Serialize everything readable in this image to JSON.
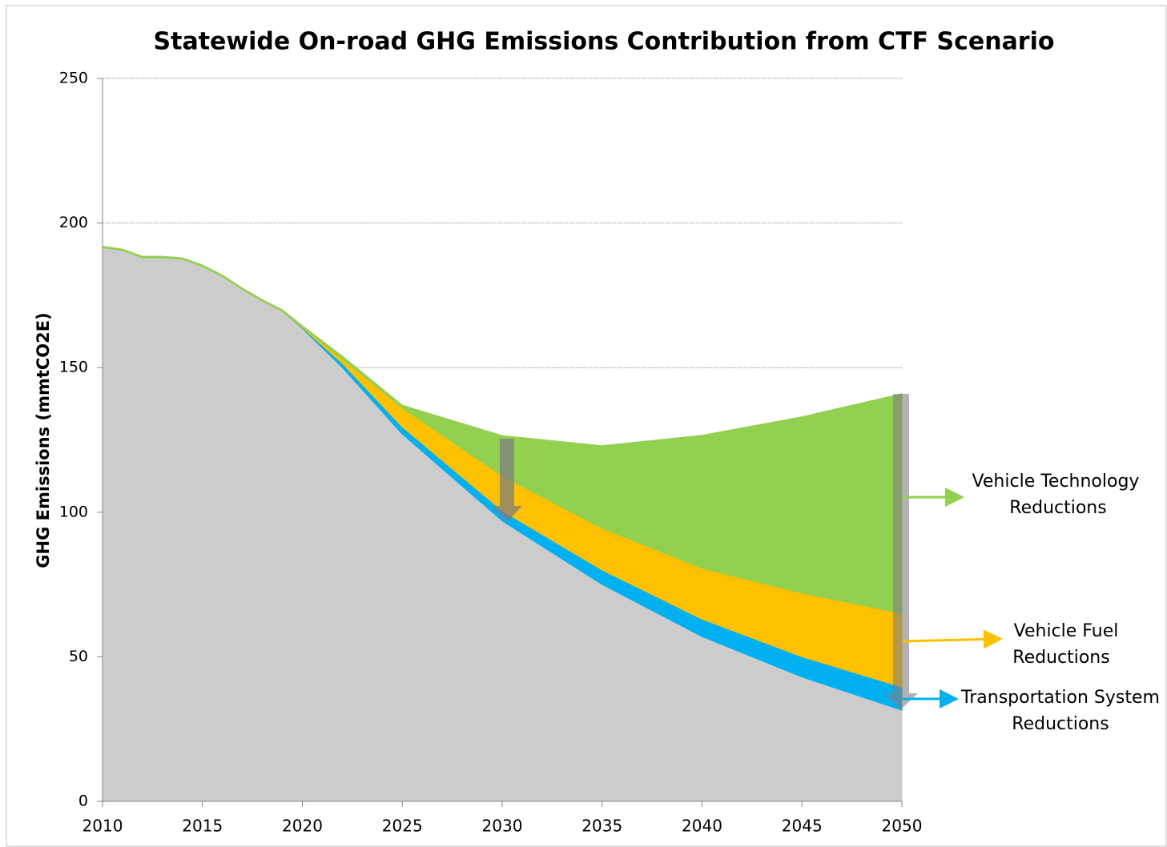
{
  "chart_data": {
    "type": "stacked_area",
    "title": "Statewide On-road GHG Emissions Contribution from CTF Scenario",
    "y_label": "GHG Emissions (mmtCO2E)",
    "x": [
      2010,
      2011,
      2012,
      2013,
      2014,
      2015,
      2016,
      2017,
      2018,
      2019,
      2020,
      2022,
      2025,
      2030,
      2035,
      2040,
      2045,
      2050
    ],
    "series": [
      {
        "color": "#cccccc",
        "values": [
          191.5,
          190.5,
          188,
          188,
          187.5,
          185,
          181.5,
          177,
          173,
          169.5,
          163.5,
          150,
          127,
          97,
          75,
          57,
          43,
          31.5
        ]
      },
      {
        "label_lines": [
          "Transportation System",
          "Reductions"
        ],
        "color": "#00b0f0",
        "values": [
          0,
          0,
          0,
          0,
          0,
          0,
          0,
          0,
          0,
          0,
          0.3,
          1.5,
          2.5,
          3.5,
          5,
          6,
          7,
          8
        ]
      },
      {
        "label_lines": [
          "Vehicle Fuel",
          "Reductions"
        ],
        "color": "#ffc000",
        "values": [
          0,
          0,
          0,
          0,
          0,
          0,
          0,
          0,
          0,
          0,
          0.3,
          1.5,
          6.5,
          12,
          14.4,
          17.6,
          22,
          25.5
        ]
      },
      {
        "label_lines": [
          "Vehicle Technology",
          "Reductions"
        ],
        "color": "#92d050",
        "values": [
          0.5,
          0.5,
          0.5,
          0.5,
          0.5,
          0.5,
          0.5,
          0.5,
          0.5,
          0.5,
          0.4,
          1,
          1,
          14,
          28.6,
          46,
          61,
          76
        ]
      }
    ],
    "xlim": [
      2010,
      2050
    ],
    "xticks": [
      2010,
      2015,
      2020,
      2025,
      2030,
      2035,
      2040,
      2045,
      2050
    ],
    "ylim": [
      0,
      250
    ],
    "yticks": [
      0,
      50,
      100,
      150,
      200,
      250
    ],
    "grid": true
  }
}
